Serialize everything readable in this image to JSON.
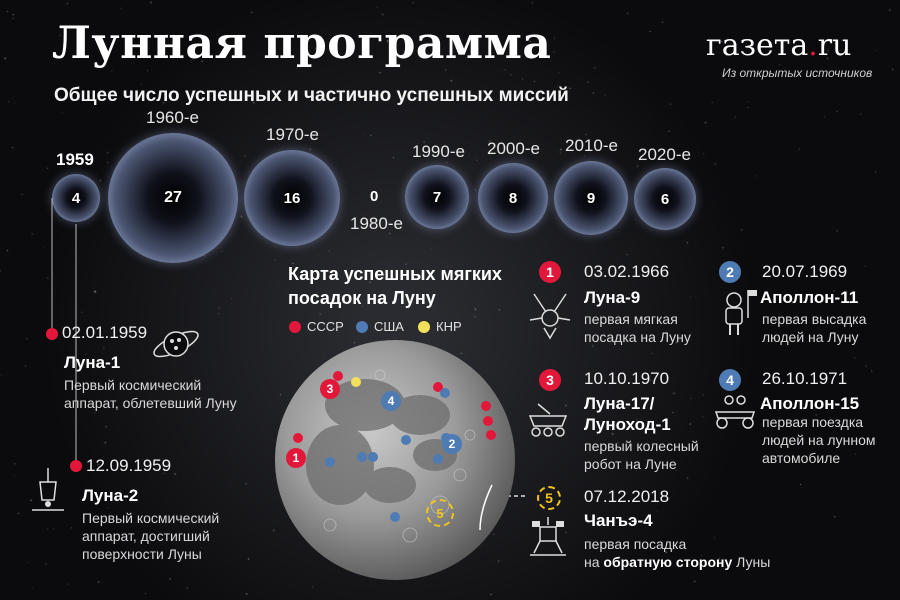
{
  "header": {
    "title": "Лунная программа",
    "subtitle": "Общее число успешных и частично успешных миссий",
    "brand_main": "газета",
    "brand_dot": ".",
    "brand_tld": "ru",
    "source": "Из открытых источников"
  },
  "decades": [
    {
      "label": "1959",
      "count": "4"
    },
    {
      "label": "1960-е",
      "count": "27"
    },
    {
      "label": "1970-е",
      "count": "16"
    },
    {
      "label": "1980-е",
      "count": "0"
    },
    {
      "label": "1990-е",
      "count": "7"
    },
    {
      "label": "2000-е",
      "count": "8"
    },
    {
      "label": "2010-е",
      "count": "9"
    },
    {
      "label": "2020-е",
      "count": "6"
    }
  ],
  "early_missions": [
    {
      "date": "02.01.1959",
      "name": "Луна-1",
      "desc1": "Первый космический",
      "desc2": "аппарат, облетевший Луну",
      "desc3": ""
    },
    {
      "date": "12.09.1959",
      "name": "Луна-2",
      "desc1": "Первый космический",
      "desc2": "аппарат, достигший",
      "desc3": "поверхности Луны"
    }
  ],
  "map": {
    "title_line1": "Карта успешных мягких",
    "title_line2": "посадок на Луну",
    "legend": [
      {
        "label": "СССР",
        "color": "#e2183a"
      },
      {
        "label": "США",
        "color": "#4e7bb4"
      },
      {
        "label": "КНР",
        "color": "#f2e05a"
      }
    ]
  },
  "landings": [
    {
      "num": "1",
      "date": "03.02.1966",
      "name1": "Луна-9",
      "name2": "",
      "d1": "первая мягкая",
      "d2": "посадка на Луну",
      "d3": "",
      "country": "СССР"
    },
    {
      "num": "2",
      "date": "20.07.1969",
      "name1": "Аполлон-11",
      "name2": "",
      "d1": "первая высадка",
      "d2": "людей на Луну",
      "d3": "",
      "country": "США"
    },
    {
      "num": "3",
      "date": "10.10.1970",
      "name1": "Луна-17/",
      "name2": "Луноход-1",
      "d1": "первый колесный",
      "d2": "робот на Луне",
      "d3": "",
      "country": "СССР"
    },
    {
      "num": "4",
      "date": "26.10.1971",
      "name1": "Аполлон-15",
      "name2": "",
      "d1": "первая поездка",
      "d2": "людей на лунном",
      "d3": "автомобиле",
      "country": "США"
    },
    {
      "num": "5",
      "date": "07.12.2018",
      "name1": "Чанъэ-4",
      "name2": "",
      "d1": "первая посадка",
      "d2_pre": "на ",
      "d2_bold": "обратную сторону",
      "d2_post": " Луны",
      "country": "КНР"
    }
  ],
  "colors": {
    "ussr": "#e2183a",
    "usa": "#4e7bb4",
    "china": "#f2e05a",
    "background": "#0b0b0d"
  }
}
